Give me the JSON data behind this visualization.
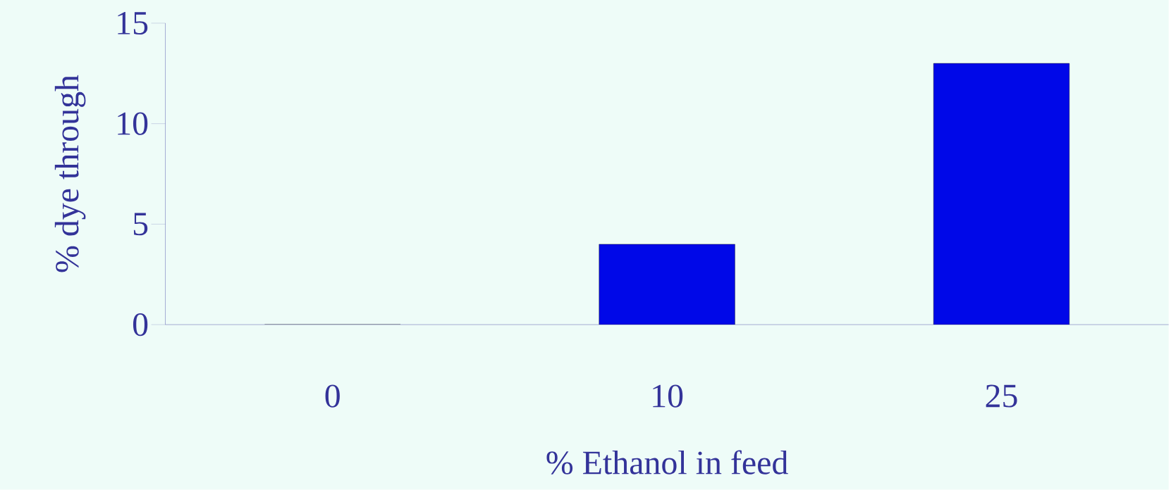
{
  "chart_data": {
    "type": "bar",
    "xlabel": "% Ethanol in feed",
    "ylabel": "% dye through",
    "categories": [
      "0",
      "10",
      "25"
    ],
    "values": [
      0,
      4,
      13
    ],
    "color": "#0008e8",
    "ylim": [
      0,
      15
    ],
    "yticks": [
      0,
      5,
      10,
      15
    ],
    "grid": false
  }
}
